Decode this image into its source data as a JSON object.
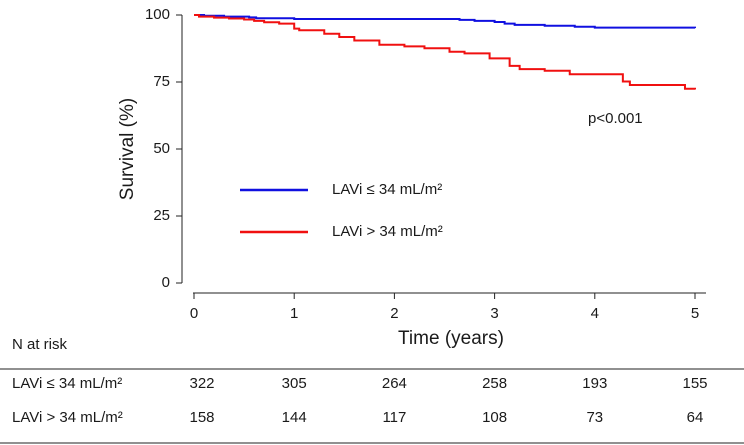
{
  "chart_data": {
    "type": "line",
    "subtype": "kaplan-meier",
    "xlabel": "Time (years)",
    "ylabel": "Survival (%)",
    "xlim": [
      0,
      5
    ],
    "ylim": [
      0,
      100
    ],
    "xticks": [
      0,
      1,
      2,
      3,
      4,
      5
    ],
    "yticks": [
      0,
      25,
      50,
      75,
      100
    ],
    "grid": false,
    "legend_position": "center-left",
    "annotation": "p<0.001",
    "series": [
      {
        "name": "LAVi ≤ 34 mL/m²",
        "color": "#1010e0",
        "x": [
          0,
          0.1,
          0.3,
          0.55,
          0.62,
          1.0,
          2.4,
          2.65,
          2.8,
          3.0,
          3.1,
          3.2,
          3.5,
          3.8,
          4.0,
          5.0
        ],
        "y": [
          100,
          99.7,
          99.4,
          99.1,
          98.8,
          98.5,
          98.5,
          98.2,
          97.8,
          97.4,
          96.8,
          96.3,
          96.0,
          95.6,
          95.3,
          95.1
        ]
      },
      {
        "name": "LAVi > 34 mL/m²",
        "color": "#f01010",
        "x": [
          0,
          0.05,
          0.2,
          0.35,
          0.5,
          0.6,
          0.7,
          0.85,
          1.0,
          1.05,
          1.3,
          1.45,
          1.6,
          1.85,
          2.1,
          2.3,
          2.55,
          2.7,
          2.95,
          3.15,
          3.25,
          3.5,
          3.75,
          4.0,
          4.28,
          4.35,
          4.9,
          5.0
        ],
        "y": [
          100,
          99.4,
          99.0,
          98.7,
          98.3,
          97.8,
          97.3,
          96.8,
          94.9,
          94.3,
          93.0,
          91.8,
          90.5,
          88.9,
          88.3,
          87.6,
          86.3,
          85.7,
          83.8,
          81.0,
          79.8,
          79.2,
          77.9,
          77.9,
          75.2,
          73.9,
          72.5,
          72.2
        ]
      }
    ]
  },
  "risk_table": {
    "title": "N at risk",
    "times": [
      0,
      1,
      2,
      3,
      4,
      5
    ],
    "rows": [
      {
        "label": "LAVi ≤ 34 mL/m²",
        "values": [
          "322",
          "305",
          "264",
          "258",
          "193",
          "155"
        ]
      },
      {
        "label": "LAVi > 34 mL/m²",
        "values": [
          "158",
          "144",
          "117",
          "108",
          "73",
          "64"
        ]
      }
    ]
  }
}
